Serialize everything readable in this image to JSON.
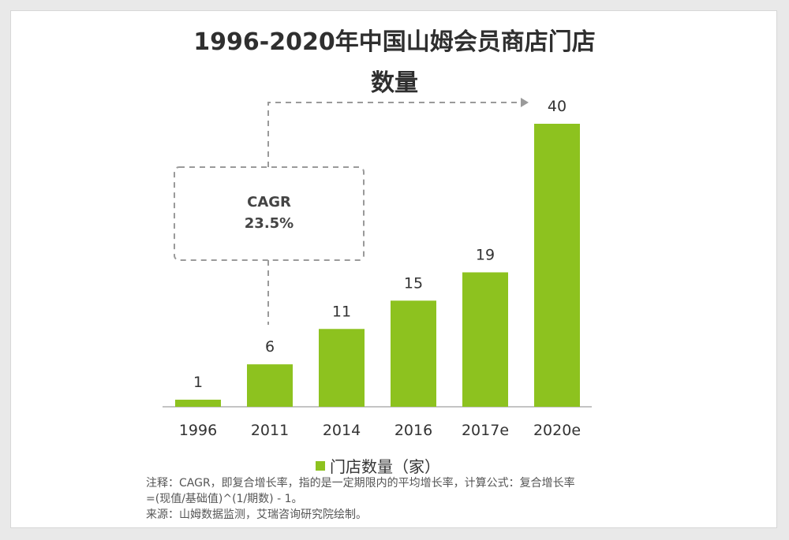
{
  "title_line1": "1996-2020年中国山姆会员商店门店",
  "title_line2": "数量",
  "colors": {
    "bar": "#8dc21f",
    "dash": "#9a9a9a"
  },
  "cagr_box": {
    "line1": "CAGR",
    "line2": "23.5%"
  },
  "legend": {
    "label": "门店数量（家）"
  },
  "notes": {
    "line1": "注释：CAGR，即复合增长率，指的是一定期限内的平均增长率，计算公式：复合增长率",
    "line2": "=(现值/基础值)^(1/期数) - 1。",
    "line3": "来源：山姆数据监测，艾瑞咨询研究院绘制。"
  },
  "chart_data": {
    "type": "bar",
    "categories": [
      "1996",
      "2011",
      "2014",
      "2016",
      "2017e",
      "2020e"
    ],
    "values": [
      1,
      6,
      11,
      15,
      19,
      40
    ],
    "title": "1996-2020年中国山姆会员商店门店数量",
    "legend": "门店数量（家）",
    "ylim": [
      0,
      40
    ],
    "grid": false
  }
}
